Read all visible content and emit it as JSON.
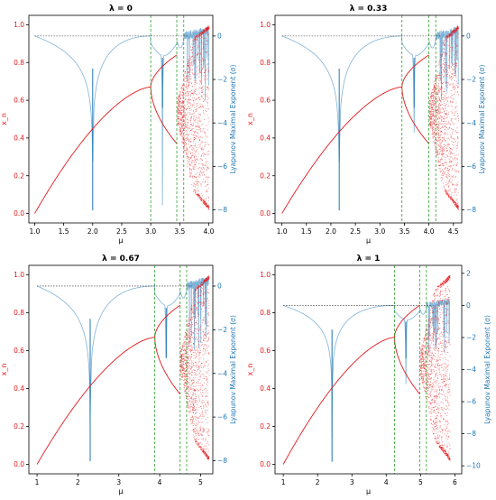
{
  "colors": {
    "bifurcation": "#e31a1c",
    "lyapunov": "#1f77b4",
    "lyapunov_line": "#7fb3d8",
    "marker": "#2ca02c",
    "zero_line": "#222222"
  },
  "chart_data": [
    {
      "type": "scatter",
      "panel": "top-left",
      "title": "λ = 0",
      "lambda": 0,
      "xlabel": "μ",
      "ylabel_left": "x_n",
      "ylabel_right": "Lyapunov Maximal Exponent (σ)",
      "xlim": [
        0.9,
        4.07
      ],
      "x_ticks": [
        1.0,
        1.5,
        2.0,
        2.5,
        3.0,
        3.5,
        4.0
      ],
      "x_tick_labels": [
        "1.0",
        "1.5",
        "2.0",
        "2.5",
        "3.0",
        "3.5",
        "4.0"
      ],
      "ylim_left": [
        -0.05,
        1.05
      ],
      "y_ticks_left": [
        0.0,
        0.2,
        0.4,
        0.6,
        0.8,
        1.0
      ],
      "y_tick_labels_left": [
        "0.0",
        "0.2",
        "0.4",
        "0.6",
        "0.8",
        "1.0"
      ],
      "ylim_right": [
        -8.6,
        0.95
      ],
      "y_ticks_right": [
        0,
        -2,
        -4,
        -6,
        -8
      ],
      "y_tick_labels_right": [
        "0",
        "−2",
        "−4",
        "−6",
        "−8"
      ],
      "mu_min": 1.0,
      "mu_max": 4.0,
      "superstable_mu": 2.0,
      "dashed_vlines": [
        3.0,
        3.449,
        3.569
      ],
      "grid": false
    },
    {
      "type": "scatter",
      "panel": "top-right",
      "title": "λ = 0.33",
      "lambda": 0.33,
      "xlabel": "μ",
      "ylabel_left": "x_n",
      "ylabel_right": "Lyapunov Maximal Exponent (σ)",
      "xlim": [
        0.86,
        4.67
      ],
      "x_ticks": [
        1.0,
        1.5,
        2.0,
        2.5,
        3.0,
        3.5,
        4.0,
        4.5
      ],
      "x_tick_labels": [
        "1.0",
        "1.5",
        "2.0",
        "2.5",
        "3.0",
        "3.5",
        "4.0",
        "4.5"
      ],
      "ylim_left": [
        -0.05,
        1.05
      ],
      "y_ticks_left": [
        0.0,
        0.2,
        0.4,
        0.6,
        0.8,
        1.0
      ],
      "y_tick_labels_left": [
        "0.0",
        "0.2",
        "0.4",
        "0.6",
        "0.8",
        "1.0"
      ],
      "ylim_right": [
        -8.6,
        0.95
      ],
      "y_ticks_right": [
        0,
        -2,
        -4,
        -6,
        -8
      ],
      "y_tick_labels_right": [
        "0",
        "−2",
        "−4",
        "−6",
        "−8"
      ],
      "mu_min": 1.0,
      "mu_max": 4.6,
      "superstable_mu": 2.17,
      "dashed_vlines": [
        3.45,
        4.0,
        4.14
      ],
      "grid": false
    },
    {
      "type": "scatter",
      "panel": "bottom-left",
      "title": "λ = 0.67",
      "lambda": 0.67,
      "xlabel": "μ",
      "ylabel_left": "x_n",
      "ylabel_right": "Lyapunov Maximal Exponent (σ)",
      "xlim": [
        0.8,
        5.3
      ],
      "x_ticks": [
        1,
        2,
        3,
        4,
        5
      ],
      "x_tick_labels": [
        "1",
        "2",
        "3",
        "4",
        "5"
      ],
      "ylim_left": [
        -0.05,
        1.05
      ],
      "y_ticks_left": [
        0.0,
        0.2,
        0.4,
        0.6,
        0.8,
        1.0
      ],
      "y_tick_labels_left": [
        "0.0",
        "0.2",
        "0.4",
        "0.6",
        "0.8",
        "1.0"
      ],
      "ylim_right": [
        -8.6,
        0.95
      ],
      "y_ticks_right": [
        0,
        -2,
        -4,
        -6,
        -8
      ],
      "y_tick_labels_right": [
        "0",
        "−2",
        "−4",
        "−6",
        "−8"
      ],
      "mu_min": 1.0,
      "mu_max": 5.2,
      "superstable_mu": 2.3,
      "dashed_vlines": [
        3.88,
        4.5,
        4.66
      ],
      "grid": false
    },
    {
      "type": "scatter",
      "panel": "bottom-right",
      "title": "λ = 1",
      "lambda": 1,
      "xlabel": "μ",
      "ylabel_left": "x_n",
      "ylabel_right": "Lyapunov Maximal Exponent (σ)",
      "xlim": [
        0.76,
        6.2
      ],
      "x_ticks": [
        1,
        2,
        3,
        4,
        5,
        6
      ],
      "x_tick_labels": [
        "1",
        "2",
        "3",
        "4",
        "5",
        "6"
      ],
      "ylim_left": [
        -0.05,
        1.05
      ],
      "y_ticks_left": [
        0.0,
        0.2,
        0.4,
        0.6,
        0.8,
        1.0
      ],
      "y_tick_labels_left": [
        "0.0",
        "0.2",
        "0.4",
        "0.6",
        "0.8",
        "1.0"
      ],
      "ylim_right": [
        -10.5,
        2.5
      ],
      "y_ticks_right": [
        2,
        0,
        -2,
        -4,
        -6,
        -8,
        -10
      ],
      "y_tick_labels_right": [
        "2",
        "0",
        "−2",
        "−4",
        "−6",
        "−8",
        "−10"
      ],
      "mu_min": 1.0,
      "mu_max": 5.85,
      "superstable_mu": 2.42,
      "dashed_vlines": [
        4.24,
        4.98,
        5.17
      ],
      "grid": false
    }
  ]
}
